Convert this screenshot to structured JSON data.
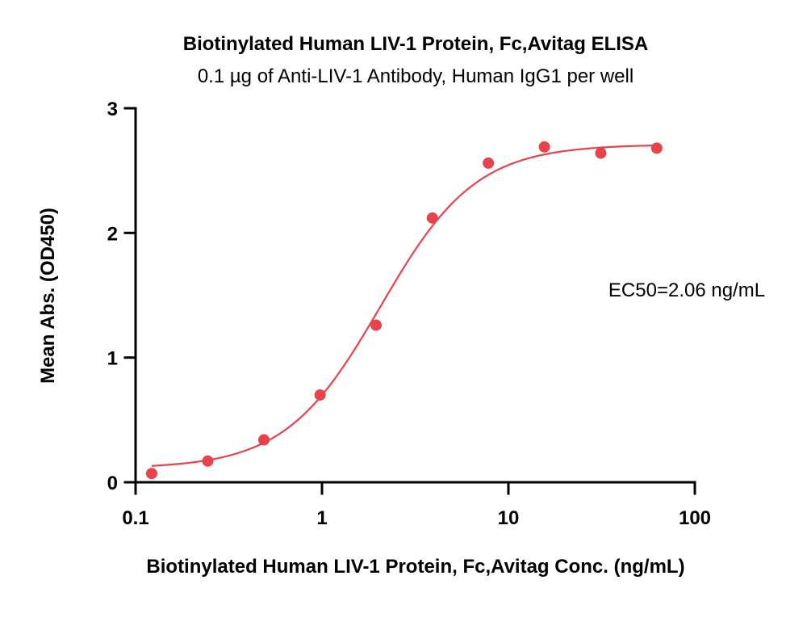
{
  "chart_data": {
    "type": "scatter",
    "title": "Biotinylated Human LIV-1 Protein, Fc,Avitag ELISA",
    "subtitle": "0.1 µg of Anti-LIV-1 Antibody, Human IgG1 per well",
    "xlabel": "Biotinylated Human LIV-1 Protein, Fc,Avitag Conc. (ng/mL)",
    "ylabel": "Mean Abs. (OD450)",
    "x_scale": "log",
    "xlim": [
      0.1,
      100
    ],
    "ylim": [
      0,
      3
    ],
    "x_ticks": [
      "0.1",
      "1",
      "10",
      "100"
    ],
    "y_ticks": [
      "0",
      "1",
      "2",
      "3"
    ],
    "grid": false,
    "series": [
      {
        "color": "#e8424a",
        "points": [
          {
            "x": 0.122,
            "y": 0.07
          },
          {
            "x": 0.244,
            "y": 0.17
          },
          {
            "x": 0.488,
            "y": 0.34
          },
          {
            "x": 0.977,
            "y": 0.7
          },
          {
            "x": 1.95,
            "y": 1.26
          },
          {
            "x": 3.91,
            "y": 2.12
          },
          {
            "x": 7.81,
            "y": 2.56
          },
          {
            "x": 15.6,
            "y": 2.69
          },
          {
            "x": 31.3,
            "y": 2.64
          },
          {
            "x": 62.5,
            "y": 2.68
          }
        ],
        "fit": {
          "model": "4PL",
          "bottom": 0.11,
          "top": 2.71,
          "ec50": 2.06,
          "hill": 1.7,
          "x_range": [
            0.122,
            62.5
          ]
        }
      }
    ],
    "annotations": [
      {
        "text": "EC50=2.06 ng/mL"
      }
    ]
  }
}
